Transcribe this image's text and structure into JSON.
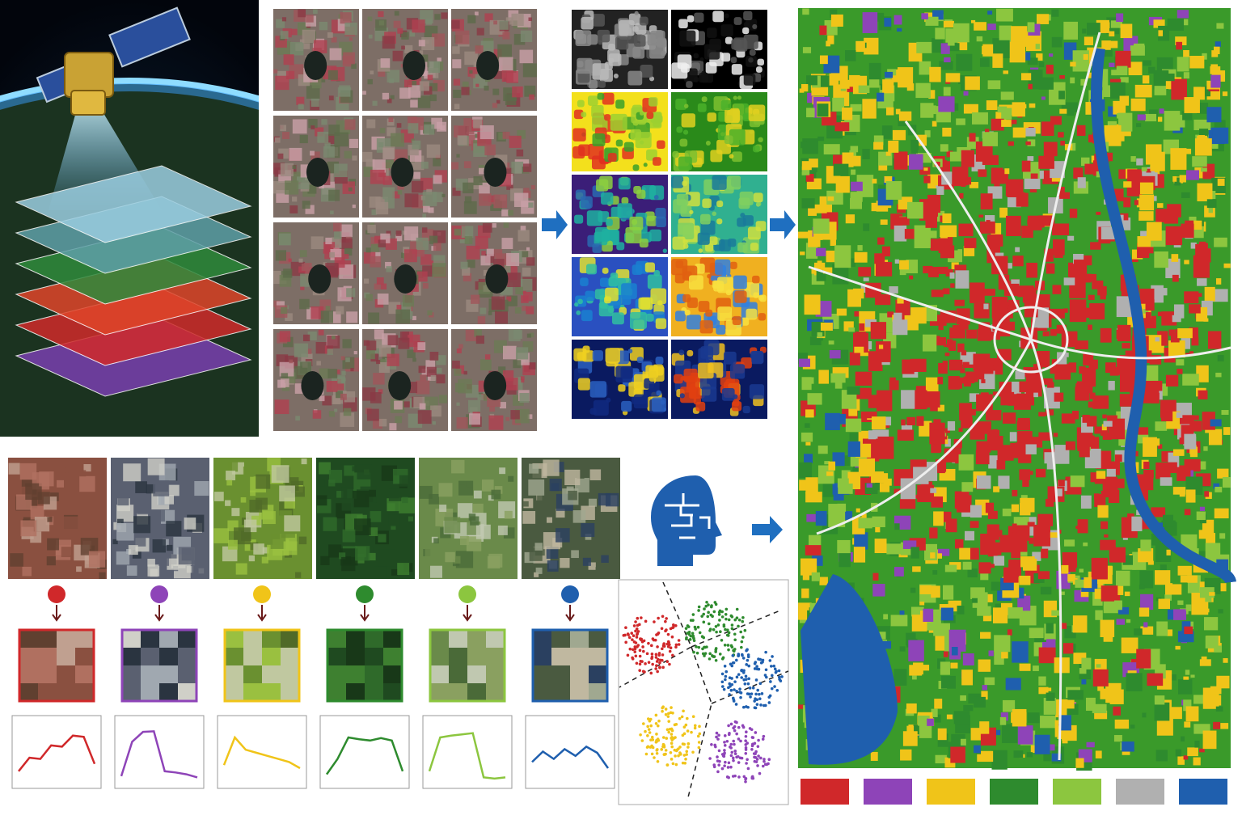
{
  "classes": [
    {
      "color": "#d0282a",
      "curve": [
        0.2,
        0.42,
        0.4,
        0.62,
        0.6,
        0.78,
        0.76,
        0.32
      ]
    },
    {
      "color": "#8e44b8",
      "curve": [
        0.12,
        0.68,
        0.84,
        0.85,
        0.2,
        0.18,
        0.15,
        0.1
      ]
    },
    {
      "color": "#f0c419",
      "curve": [
        0.3,
        0.75,
        0.55,
        0.5,
        0.45,
        0.4,
        0.35,
        0.25
      ]
    },
    {
      "color": "#2e8b2e",
      "curve": [
        0.15,
        0.4,
        0.75,
        0.72,
        0.7,
        0.74,
        0.7,
        0.2
      ]
    },
    {
      "color": "#8cc63f",
      "curve": [
        0.2,
        0.75,
        0.78,
        0.8,
        0.82,
        0.1,
        0.08,
        0.1
      ]
    },
    {
      "color": "#1f5fae",
      "curve": [
        0.35,
        0.52,
        0.4,
        0.56,
        0.45,
        0.6,
        0.5,
        0.25
      ]
    }
  ],
  "legend": [
    "#d0282a",
    "#8e44b8",
    "#f0c419",
    "#2e8b2e",
    "#8cc63f",
    "#b0b0b0",
    "#1f5fae"
  ]
}
